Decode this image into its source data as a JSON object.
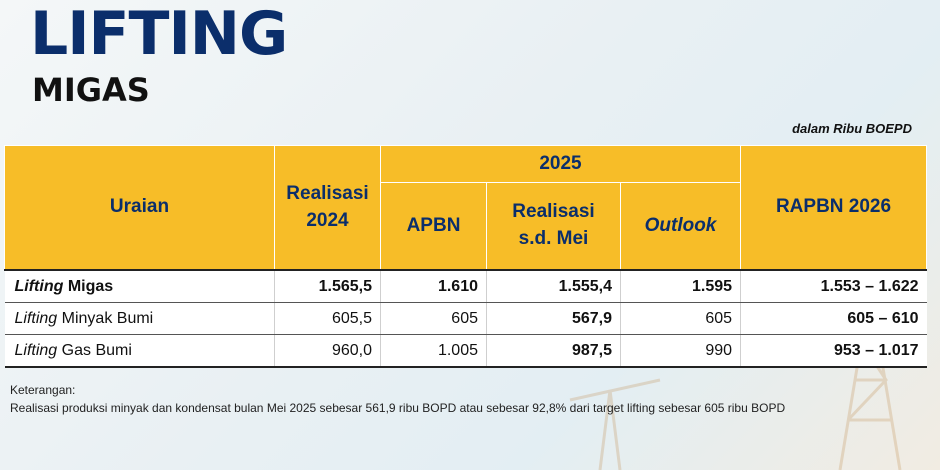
{
  "title": {
    "main": "LIFTING",
    "sub": "MIGAS"
  },
  "unit_note": "dalam Ribu BOEPD",
  "table": {
    "headers": {
      "uraian": "Uraian",
      "realisasi_2024": [
        "Realisasi",
        "2024"
      ],
      "year_group": "2025",
      "apbn": "APBN",
      "realisasi_mei": [
        "Realisasi",
        "s.d. Mei"
      ],
      "outlook": "Outlook",
      "rapbn_2026": "RAPBN 2026"
    },
    "rows": [
      {
        "label_italic": "Lifting",
        "label_rest": " Migas",
        "realisasi_2024": "1.565,5",
        "apbn": "1.610",
        "realisasi_mei": "1.555,4",
        "outlook": "1.595",
        "rapbn_2026": "1.553 – 1.622"
      },
      {
        "label_italic": "Lifting",
        "label_rest": " Minyak Bumi",
        "realisasi_2024": "605,5",
        "apbn": "605",
        "realisasi_mei": "567,9",
        "outlook": "605",
        "rapbn_2026": "605 – 610"
      },
      {
        "label_italic": "Lifting",
        "label_rest": " Gas Bumi",
        "realisasi_2024": "960,0",
        "apbn": "1.005",
        "realisasi_mei": "987,5",
        "outlook": "990",
        "rapbn_2026": "953 – 1.017"
      }
    ]
  },
  "notes": {
    "label": "Keterangan:",
    "text": "Realisasi produksi minyak dan kondensat bulan Mei 2025 sebesar 561,9 ribu BOPD atau sebesar 92,8% dari target lifting sebesar 605 ribu BOPD"
  },
  "colors": {
    "header_bg": "#f7bd28",
    "header_text": "#0b2e6b",
    "title": "#0b2e6b"
  }
}
